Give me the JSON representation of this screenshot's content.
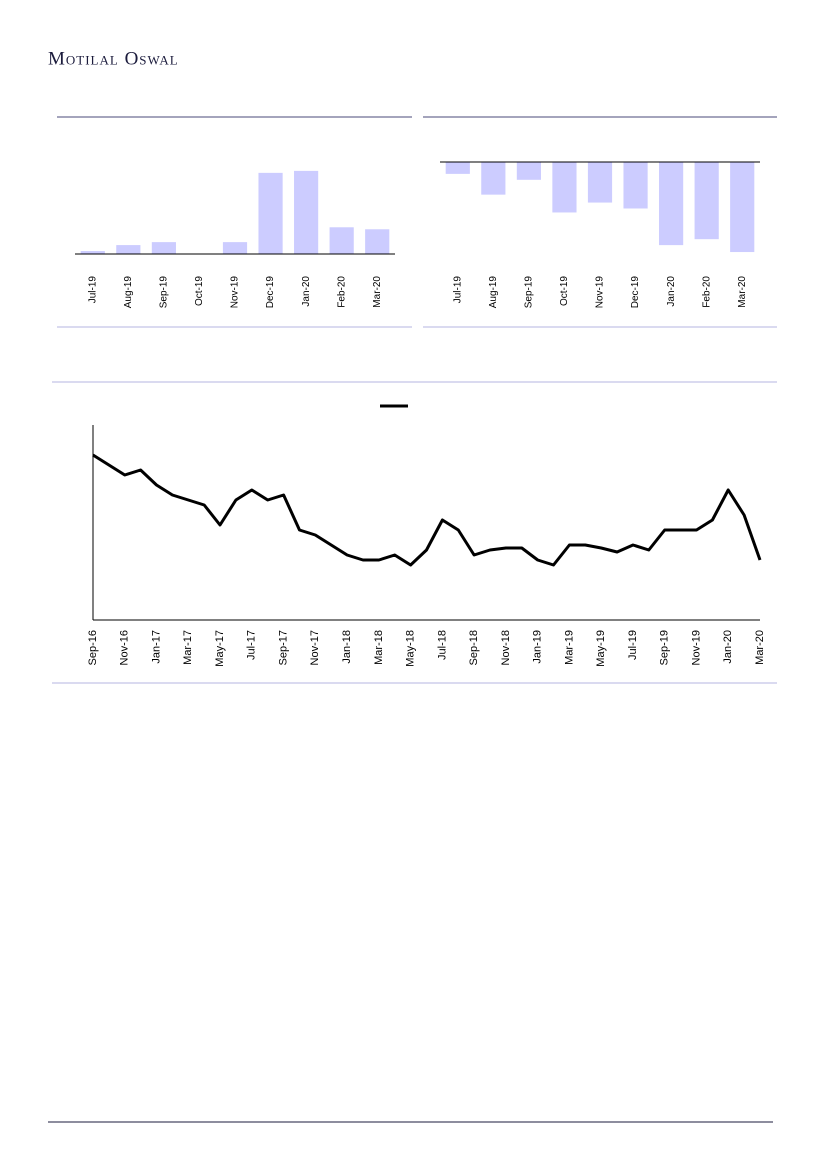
{
  "header": {
    "brand": "Motilal Oswal"
  },
  "chart_data": [
    {
      "type": "bar",
      "color": "#ccccff",
      "categories": [
        "Jul-19",
        "Aug-19",
        "Sep-19",
        "Oct-19",
        "Nov-19",
        "Dec-19",
        "Jan-20",
        "Feb-20",
        "Mar-20"
      ],
      "values": [
        3,
        9,
        12,
        0,
        12,
        82,
        84,
        27,
        25
      ],
      "ylim": [
        0,
        95
      ]
    },
    {
      "type": "bar",
      "color": "#ccccff",
      "categories": [
        "Jul-19",
        "Aug-19",
        "Sep-19",
        "Oct-19",
        "Nov-19",
        "Dec-19",
        "Jan-20",
        "Feb-20",
        "Mar-20"
      ],
      "values": [
        -12,
        -33,
        -18,
        -51,
        -41,
        -47,
        -84,
        -78,
        -91
      ],
      "ylim": [
        -95,
        0
      ]
    },
    {
      "type": "line",
      "color": "#000000",
      "categories": [
        "Sep-16",
        null,
        "Nov-16",
        null,
        "Jan-17",
        null,
        "Mar-17",
        null,
        "May-17",
        null,
        "Jul-17",
        null,
        "Sep-17",
        null,
        "Nov-17",
        null,
        "Jan-18",
        null,
        "Mar-18",
        null,
        "May-18",
        null,
        "Jul-18",
        null,
        "Sep-18",
        null,
        "Nov-18",
        null,
        "Jan-19",
        null,
        "Mar-19",
        null,
        "May-19",
        null,
        "Jul-19",
        null,
        "Sep-19",
        null,
        "Nov-19",
        null,
        "Jan-20",
        null,
        "Mar-20"
      ],
      "values": [
        165,
        155,
        145,
        150,
        135,
        125,
        120,
        115,
        95,
        120,
        130,
        120,
        125,
        90,
        85,
        75,
        65,
        60,
        60,
        65,
        55,
        70,
        100,
        90,
        65,
        70,
        72,
        72,
        60,
        55,
        75,
        75,
        72,
        68,
        75,
        70,
        90,
        90,
        90,
        100,
        130,
        105,
        60
      ],
      "ylim": [
        0,
        195
      ]
    }
  ]
}
